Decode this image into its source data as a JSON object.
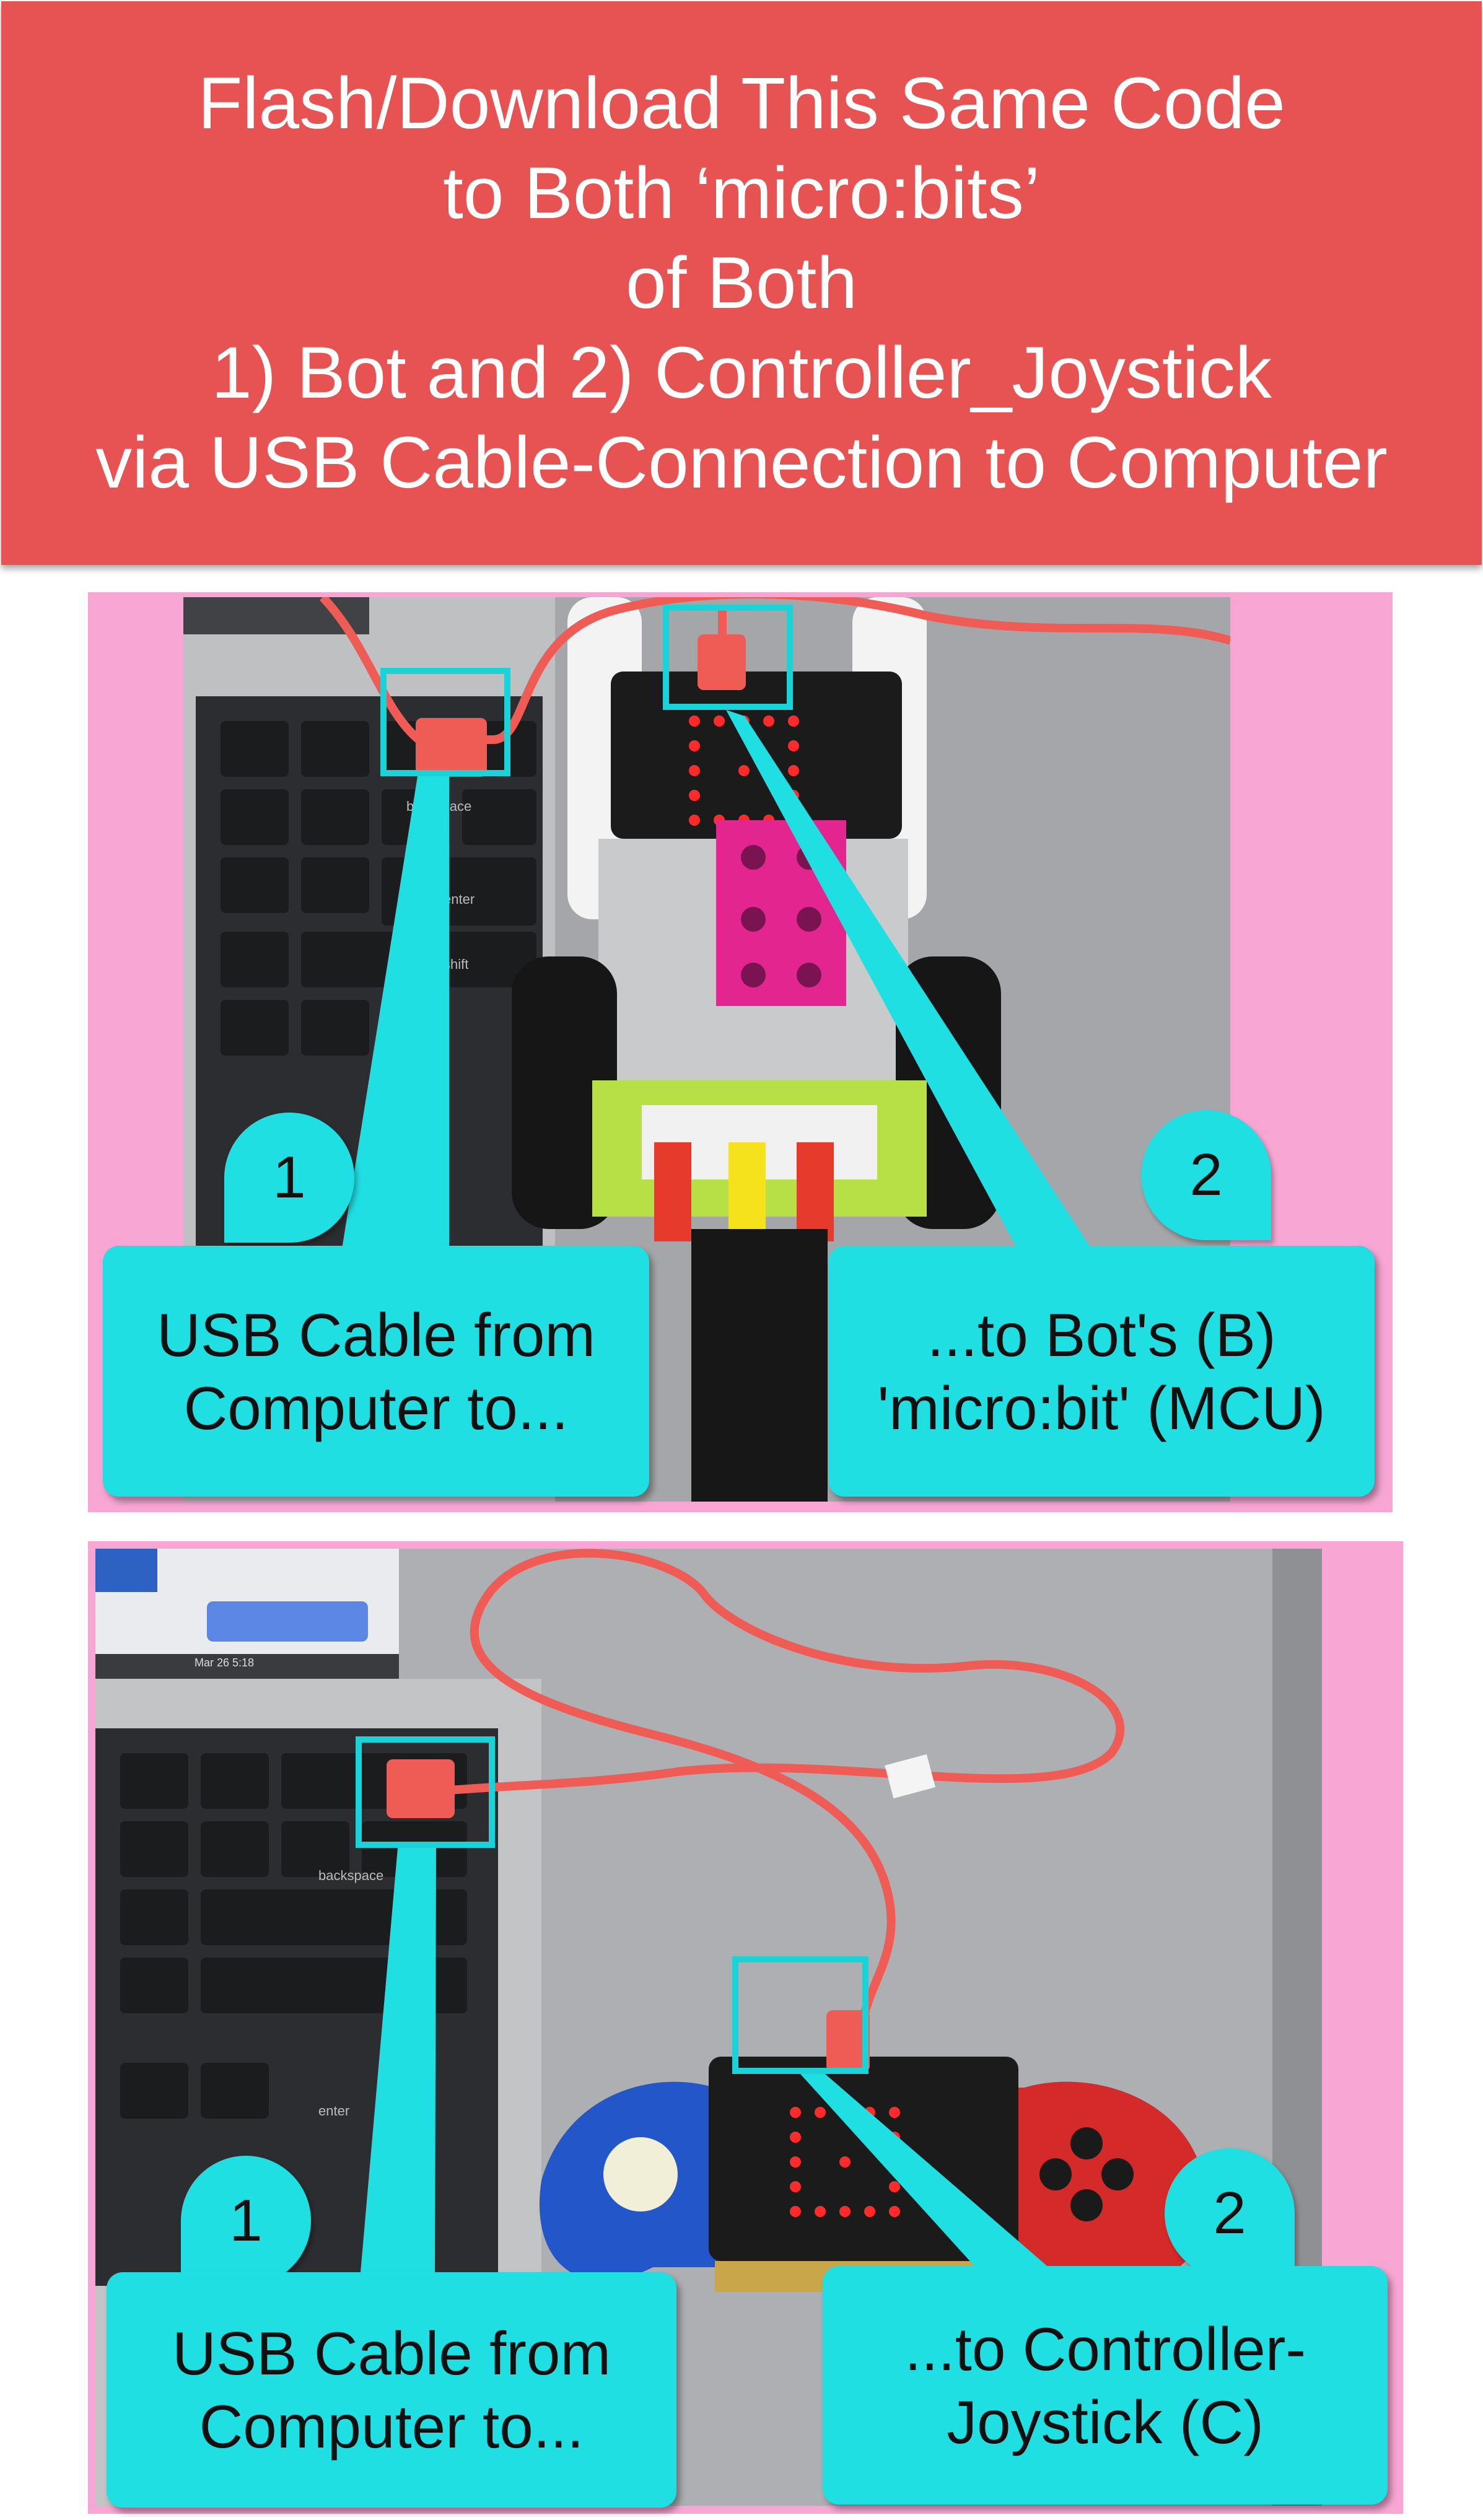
{
  "banner": {
    "lines": [
      "Flash/Download This Same Code",
      "to Both ‘micro:bits’",
      "of Both",
      "1) Bot and 2) Controller_Joystick",
      "via USB Cable-Connection to Computer"
    ]
  },
  "panel_top": {
    "keyboard_labels": [
      "backspace",
      "enter",
      "shift"
    ],
    "callout_left": {
      "number": "1",
      "line1": "USB Cable from",
      "line2": "Computer to..."
    },
    "callout_right": {
      "number": "2",
      "line1": "...to Bot's (B)",
      "line2": "'micro:bit' (MCU)"
    }
  },
  "panel_bottom": {
    "keyboard_labels": [
      "backspace",
      "enter"
    ],
    "screen_status": "Mar 26  5:18",
    "callout_left": {
      "number": "1",
      "line1": "USB Cable from",
      "line2": "Computer to..."
    },
    "callout_right": {
      "number": "2",
      "line1": "...to Controller-",
      "line2": "Joystick (C)"
    }
  },
  "colors": {
    "banner": "#e65352",
    "panel_frame": "#f7a6d3",
    "callout": "#1fdfe3",
    "usb_cable": "#ef5c55"
  }
}
